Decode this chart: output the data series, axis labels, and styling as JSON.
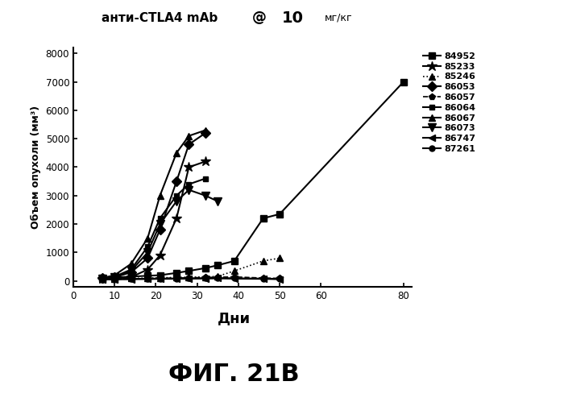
{
  "title": "анти-CTLA4 mAb @ 10 мг/кг",
  "ylabel": "Объем опухоли (мм³)",
  "xlabel": "Дни",
  "figure_label": "ФИГ. 21B",
  "xlim": [
    0,
    82
  ],
  "ylim": [
    -200,
    8200
  ],
  "yticks": [
    0,
    1000,
    2000,
    3000,
    4000,
    5000,
    6000,
    7000,
    8000
  ],
  "xticks": [
    0,
    10,
    20,
    30,
    40,
    50,
    60,
    80
  ],
  "series": [
    {
      "label": "84952",
      "marker": "s",
      "linestyle": "-",
      "x": [
        7,
        10,
        14,
        18,
        21,
        25,
        28,
        32,
        35,
        39,
        46,
        50,
        80
      ],
      "y": [
        100,
        120,
        150,
        180,
        200,
        280,
        350,
        450,
        550,
        700,
        2200,
        2350,
        7000
      ]
    },
    {
      "label": "85233",
      "marker": "*",
      "linestyle": "-",
      "x": [
        7,
        10,
        14,
        18,
        21,
        25,
        28,
        32
      ],
      "y": [
        80,
        100,
        130,
        400,
        900,
        2200,
        4000,
        4200
      ]
    },
    {
      "label": "85246",
      "marker": "^",
      "linestyle": ":",
      "x": [
        7,
        10,
        14,
        18,
        21,
        25,
        28,
        32,
        35,
        39,
        46,
        50
      ],
      "y": [
        70,
        80,
        90,
        100,
        110,
        120,
        130,
        140,
        160,
        350,
        700,
        800
      ]
    },
    {
      "label": "86053",
      "marker": "D",
      "linestyle": "-",
      "x": [
        7,
        10,
        14,
        18,
        21,
        25,
        28,
        32
      ],
      "y": [
        100,
        130,
        300,
        800,
        1800,
        3500,
        4800,
        5200
      ]
    },
    {
      "label": "86057",
      "marker": "p",
      "linestyle": "--",
      "x": [
        7,
        10,
        14,
        18,
        21,
        25,
        28,
        32,
        35,
        39,
        46,
        50
      ],
      "y": [
        50,
        60,
        70,
        80,
        90,
        100,
        110,
        120,
        130,
        140,
        100,
        90
      ]
    },
    {
      "label": "86064",
      "marker": "s",
      "linestyle": "-",
      "x": [
        7,
        10,
        14,
        18,
        21,
        25,
        28,
        32
      ],
      "y": [
        90,
        150,
        400,
        1200,
        2200,
        3000,
        3400,
        3600
      ]
    },
    {
      "label": "86067",
      "marker": "^",
      "linestyle": "-",
      "x": [
        7,
        10,
        14,
        18,
        21,
        25,
        28,
        32
      ],
      "y": [
        100,
        200,
        600,
        1500,
        3000,
        4500,
        5100,
        5300
      ]
    },
    {
      "label": "86073",
      "marker": "v",
      "linestyle": "-",
      "x": [
        7,
        10,
        14,
        18,
        21,
        25,
        28,
        32,
        35
      ],
      "y": [
        80,
        120,
        350,
        1000,
        2000,
        2800,
        3200,
        3000,
        2800
      ]
    },
    {
      "label": "86747",
      "marker": "<",
      "linestyle": "-",
      "x": [
        7,
        10,
        14,
        18,
        21,
        25,
        28,
        32,
        35,
        39,
        46,
        50
      ],
      "y": [
        50,
        55,
        60,
        65,
        70,
        75,
        80,
        85,
        90,
        80,
        70,
        60
      ]
    },
    {
      "label": "87261",
      "marker": "o",
      "linestyle": "-",
      "x": [
        7,
        10,
        14,
        18,
        21,
        25,
        28,
        32,
        35,
        39,
        46,
        50
      ],
      "y": [
        60,
        65,
        70,
        75,
        80,
        85,
        90,
        95,
        100,
        90,
        80,
        70
      ]
    }
  ]
}
